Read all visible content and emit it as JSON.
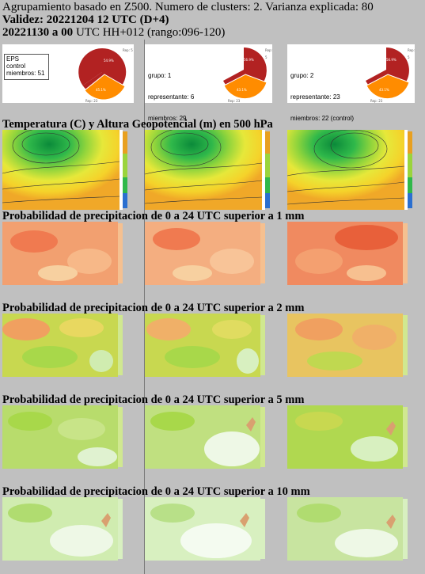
{
  "header": {
    "line1": "Agrupamiento basado en Z500. Numero de clusters: 2. Varianza explicada: 80",
    "line2_bold": "Validez: 20221204 12 UTC (D+4)",
    "line3_bold": "20221130 a 00",
    "line3_rest": " UTC HH+012 (rango:096-120)"
  },
  "clusters": [
    {
      "label1": "EPS",
      "label2": "control",
      "label3": "miembros: 51",
      "pie_top": "Rep: 5",
      "pie_bottom": "Rep: 23",
      "pct_red": "54.9%",
      "pct_orange": "45.1%"
    },
    {
      "label1": "grupo: 1",
      "label2": "representante: 6",
      "label3": "miembros: 29",
      "pie_top": "Rep: 5",
      "pie_bottom": "Rep: 23",
      "pct_red": "56.9%",
      "pct_orange": "43.1%"
    },
    {
      "label1": "grupo: 2",
      "label2": "representante: 23",
      "label3": "miembros: 22 (control)",
      "pie_top": "Rep: 5",
      "pie_bottom": "Rep: 23",
      "pct_red": "56.9%",
      "pct_orange": "43.1%"
    }
  ],
  "sections": {
    "temp": "Temperatura (C) y Altura Geopotencial (m) en 500 hPa",
    "p1": "Probabilidad de precipitacion de 0 a 24 UTC superior a 1 mm",
    "p2": "Probabilidad de precipitacion de 0 a 24 UTC superior a 2 mm",
    "p5": "Probabilidad de precipitacion de 0 a 24 UTC superior a 5 mm",
    "p10": "Probabilidad de precipitacion de 0 a 24 UTC superior a 10 mm"
  },
  "colors": {
    "background": "#c0c0c0",
    "pie_red": "#b22222",
    "pie_orange": "#ff8c00",
    "precip_high": "#f07a50",
    "precip_mid": "#a8d84a",
    "precip_low": "#e0f2d0"
  }
}
